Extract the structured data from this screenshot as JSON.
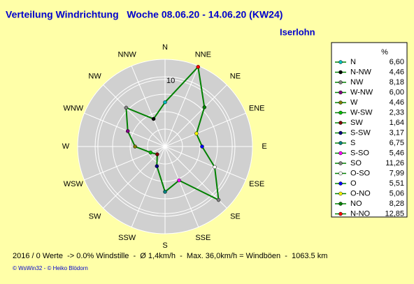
{
  "chart_data": {
    "type": "radar",
    "title": "Verteilung Windrichtung   Woche 08.06.20 - 14.06.20 (KW24)",
    "subtitle": "Iserlohn",
    "directions": [
      "N",
      "NNE",
      "NE",
      "ENE",
      "E",
      "ESE",
      "SE",
      "SSE",
      "S",
      "SSW",
      "SW",
      "WSW",
      "W",
      "WNW",
      "NW",
      "NNW"
    ],
    "rlim": [
      0,
      13
    ],
    "rticks": [
      10
    ],
    "legend_header": "%",
    "categories": [
      "N",
      "N-NW",
      "NW",
      "W-NW",
      "W",
      "W-SW",
      "SW",
      "S-SW",
      "S",
      "S-SO",
      "SO",
      "O-SO",
      "O",
      "O-NO",
      "NO",
      "N-NO"
    ],
    "values": [
      6.6,
      4.46,
      8.18,
      6.0,
      4.46,
      2.33,
      1.64,
      3.17,
      6.75,
      5.46,
      11.26,
      7.99,
      5.51,
      5.06,
      8.28,
      12.85
    ],
    "value_labels": [
      "6,60",
      "4,46",
      "8,18",
      "6,00",
      "4,46",
      "2,33",
      "1,64",
      "3,17",
      "6,75",
      "5,46",
      "11,26",
      "7,99",
      "5,51",
      "5,06",
      "8,28",
      "12,85"
    ],
    "colors": [
      "#00c0c0",
      "#000000",
      "#808080",
      "#800080",
      "#808000",
      "#00c000",
      "#800000",
      "#000080",
      "#008080",
      "#ff00ff",
      "#808080",
      "#ffffff",
      "#0000ff",
      "#ffff00",
      "#008000",
      "#ff0000"
    ],
    "line_color": "#008000",
    "footer": "2016 / 0 Werte  -> 0.0% Windstille  -  Ø 1,4km/h  -  Max. 36,0km/h = Windböen  -  1063.5 km",
    "credit": "© WsWin32  - © Heiko Blödorn"
  }
}
